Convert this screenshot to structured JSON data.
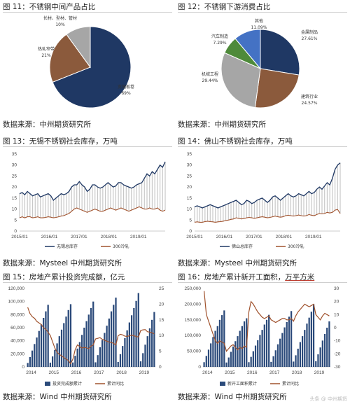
{
  "figures": {
    "fig11": {
      "title": "图 11：不锈钢中间产品占比",
      "source": "数据来源：中州期货研究所"
    },
    "fig12": {
      "title": "图 12：不锈钢下游消费占比",
      "source": "数据来源：中州期货研究所"
    },
    "fig13": {
      "title": "图 13：无锡不锈钢社会库存，万吨",
      "source": "数据来源：Mysteel  中州期货研究所"
    },
    "fig14": {
      "title": "图 14：佛山不锈钢社会库存，万吨",
      "source": "数据来源：Mysteel  中州期货研究所"
    },
    "fig15": {
      "title": "图 15：房地产累计投资完成额，亿元",
      "source": "数据来源：Wind  中州期货研究所"
    },
    "fig16": {
      "title_main": "图 16：房地产累计新开工面积，",
      "title_unit": "万平方米",
      "source": "数据来源：Wind  中州期货研究所"
    }
  },
  "colors": {
    "navy": "#1f3864",
    "brown": "#8b5a3c",
    "grey": "#a6a6a6",
    "green": "#4e8a3a",
    "blue": "#4472c4",
    "bar": "#2b4a7a",
    "line": "#a0522d"
  },
  "chart_data": [
    {
      "id": "fig11",
      "type": "pie",
      "slices": [
        {
          "label": "宽幅板卷",
          "pct": "69%",
          "value": 69,
          "color": "#1f3864"
        },
        {
          "label": "热轧窄带",
          "pct": "21%",
          "value": 21,
          "color": "#8b5a3c"
        },
        {
          "label": "长材、型材、管材",
          "pct": "10%",
          "value": 10,
          "color": "#a6a6a6"
        }
      ]
    },
    {
      "id": "fig12",
      "type": "pie",
      "slices": [
        {
          "label": "金属制品",
          "pct": "27.61%",
          "value": 27.61,
          "color": "#1f3864"
        },
        {
          "label": "建筑行业",
          "pct": "24.57%",
          "value": 24.57,
          "color": "#8b5a3c"
        },
        {
          "label": "机械工程",
          "pct": "29.44%",
          "value": 29.44,
          "color": "#a6a6a6"
        },
        {
          "label": "汽车制造",
          "pct": "7.29%",
          "value": 7.29,
          "color": "#4e8a3a"
        },
        {
          "label": "其他",
          "pct": "11.09%",
          "value": 11.09,
          "color": "#4472c4"
        }
      ]
    },
    {
      "id": "fig13",
      "type": "line",
      "x_ticks": [
        "2015/01",
        "2016/01",
        "2017/01",
        "2018/01",
        "2019/01"
      ],
      "y_ticks": [
        "0",
        "5",
        "10",
        "15",
        "20",
        "25",
        "30",
        "35"
      ],
      "ylim": [
        0,
        35
      ],
      "series": [
        {
          "name": "无锡总库存",
          "color": "#1f3864",
          "values": [
            17,
            17.5,
            16.5,
            18,
            17,
            16,
            16.5,
            17,
            15.5,
            16,
            16.5,
            17,
            16,
            14,
            15,
            16,
            17,
            16.5,
            17,
            18,
            20,
            21,
            21,
            22.5,
            21,
            20,
            18,
            19,
            21,
            21,
            20,
            19.5,
            20,
            21,
            22,
            21,
            20,
            20.5,
            22,
            22,
            21,
            20.5,
            20,
            19.5,
            20,
            21,
            21.5,
            22,
            24,
            26,
            25,
            27,
            26,
            28,
            30,
            29,
            31.5
          ]
        },
        {
          "name": "300冷轧",
          "color": "#a0522d",
          "values": [
            6,
            6.5,
            6,
            6.5,
            6.5,
            6,
            6.2,
            6.5,
            6,
            6,
            6.2,
            6.5,
            6.3,
            6,
            6.2,
            6.5,
            6.8,
            7,
            7.5,
            8,
            9,
            10,
            10.5,
            10,
            9.5,
            9,
            8.5,
            9,
            9.5,
            10,
            9.5,
            9,
            9,
            9.5,
            10,
            10.5,
            10,
            9.5,
            10,
            10.5,
            10,
            9.5,
            9,
            9.5,
            10,
            10.5,
            11,
            10.5,
            10,
            10,
            10.5,
            10,
            10,
            10.5,
            9.5,
            9,
            9.5
          ]
        }
      ]
    },
    {
      "id": "fig14",
      "type": "line",
      "x_ticks": [
        "2015/01",
        "2016/01",
        "2017/01",
        "2018/01",
        "2019/01"
      ],
      "y_ticks": [
        "0",
        "5",
        "10",
        "15",
        "20",
        "25",
        "30",
        "35"
      ],
      "ylim": [
        0,
        35
      ],
      "series": [
        {
          "name": "佛山总库存",
          "color": "#1f3864",
          "values": [
            11,
            11.5,
            11,
            10.5,
            11,
            11.5,
            12,
            11.5,
            11,
            10.5,
            11,
            11.5,
            12,
            12.5,
            13,
            13.5,
            14,
            13,
            12,
            12.5,
            14,
            13.5,
            12.5,
            13,
            14,
            14.5,
            15,
            14,
            13,
            14,
            15.5,
            16,
            15,
            14,
            15,
            16,
            17,
            16,
            15.5,
            16,
            17,
            16.5,
            16,
            17,
            18,
            17,
            17.5,
            19,
            20,
            19,
            20.5,
            22,
            21,
            24,
            28,
            30,
            31
          ]
        },
        {
          "name": "300冷轧",
          "color": "#a0522d",
          "values": [
            4,
            4.2,
            4,
            4,
            4.3,
            4.5,
            4.3,
            4.2,
            4,
            4.2,
            4.3,
            4.5,
            4.8,
            5,
            5.3,
            5.5,
            6,
            5.8,
            5.5,
            5.7,
            6,
            6.2,
            6,
            5.8,
            6,
            6.3,
            6.5,
            6.3,
            6,
            6.2,
            6.5,
            6.8,
            6.5,
            6.3,
            6.5,
            7,
            7.2,
            7,
            6.8,
            7,
            7.3,
            7,
            6.8,
            7,
            7.5,
            7.2,
            7,
            7.5,
            8,
            7.8,
            8,
            8.5,
            8.2,
            8.5,
            9.5,
            9.8,
            8
          ]
        }
      ]
    },
    {
      "id": "fig15",
      "type": "bar",
      "x_ticks": [
        "2014",
        "2015",
        "2016",
        "2017",
        "2018",
        "2019"
      ],
      "y_ticks": [
        "0",
        "20,000",
        "40,000",
        "60,000",
        "80,000",
        "100,000",
        "120,000"
      ],
      "y2_ticks": [
        "0",
        "5",
        "10",
        "15",
        "20",
        "25"
      ],
      "ylim": [
        0,
        120000
      ],
      "y2lim": [
        0,
        25
      ],
      "series": [
        {
          "name": "投资完成额累计",
          "color": "#2b4a7a",
          "values": [
            6000,
            15000,
            25000,
            35000,
            45000,
            55000,
            65000,
            75000,
            85000,
            95000,
            6500,
            16000,
            26000,
            36000,
            47000,
            57000,
            67000,
            77000,
            87000,
            96000,
            6800,
            17000,
            28000,
            38000,
            49000,
            60000,
            70000,
            80000,
            90000,
            100000,
            7000,
            18000,
            30000,
            41000,
            52000,
            63000,
            74000,
            85000,
            95000,
            106000,
            7500,
            19500,
            32000,
            44000,
            56000,
            68000,
            79000,
            90000,
            101000,
            113000,
            8500,
            21000,
            34000,
            47000,
            59000,
            72000,
            84000
          ]
        },
        {
          "name": "累计同比",
          "color": "#a0522d",
          "values": [
            19,
            17,
            16,
            15.5,
            14.5,
            14,
            13.5,
            12.5,
            12,
            11,
            10,
            8,
            6,
            4.6,
            4,
            3.5,
            3,
            2.5,
            2,
            1,
            2.5,
            5.5,
            7,
            6.5,
            6,
            6.2,
            6.1,
            5.8,
            6.6,
            7,
            8.9,
            9.1,
            9.3,
            8.8,
            8.5,
            8.2,
            7.9,
            7.8,
            7.5,
            7,
            9.9,
            10.4,
            10.2,
            9.8,
            9.7,
            9.9,
            10.1,
            9.9,
            9.7,
            9.5,
            11.6,
            11.8,
            11.9,
            11.2,
            11.1,
            10.9,
            10.5
          ]
        }
      ]
    },
    {
      "id": "fig16",
      "type": "bar",
      "x_ticks": [
        "2014",
        "2015",
        "2016",
        "2017",
        "2018",
        "2019"
      ],
      "y_ticks": [
        "0",
        "50,000",
        "100,000",
        "150,000",
        "200,000",
        "250,000"
      ],
      "y2_ticks": [
        "-30",
        "-20",
        "-10",
        "0",
        "10",
        "20",
        "30"
      ],
      "ylim": [
        0,
        250000
      ],
      "y2lim": [
        -30,
        30
      ],
      "series": [
        {
          "name": "新开工面积累计",
          "color": "#2b4a7a",
          "values": [
            15000,
            35000,
            55000,
            75000,
            95000,
            115000,
            130000,
            150000,
            165000,
            180000,
            14000,
            30000,
            48000,
            65000,
            82000,
            98000,
            115000,
            130000,
            145000,
            155000,
            15000,
            32000,
            50000,
            68000,
            85000,
            102000,
            118000,
            135000,
            150000,
            166000,
            16000,
            34000,
            53000,
            72000,
            90000,
            108000,
            126000,
            143000,
            160000,
            178000,
            17000,
            37000,
            58000,
            79000,
            98000,
            118000,
            138000,
            157000,
            176000,
            200000,
            18000,
            40000,
            62000,
            84000,
            105000,
            125000,
            145000
          ]
        },
        {
          "name": "累计同比",
          "color": "#a0522d",
          "values": [
            28,
            10,
            5,
            0,
            -5,
            -10,
            -12,
            -10,
            -11,
            -12,
            -18,
            -16,
            -14,
            -13,
            -15,
            -17,
            -15,
            -16,
            -14,
            -15,
            12,
            20,
            18,
            15,
            12,
            10,
            8,
            7,
            8,
            9,
            6,
            5,
            4,
            5,
            6,
            7,
            7,
            6,
            6,
            7,
            5,
            9,
            12,
            14,
            16,
            18,
            17,
            16,
            17,
            18,
            10,
            8,
            6,
            9,
            11,
            10,
            9
          ]
        }
      ]
    }
  ],
  "watermark": "头条 @ 中州期货"
}
